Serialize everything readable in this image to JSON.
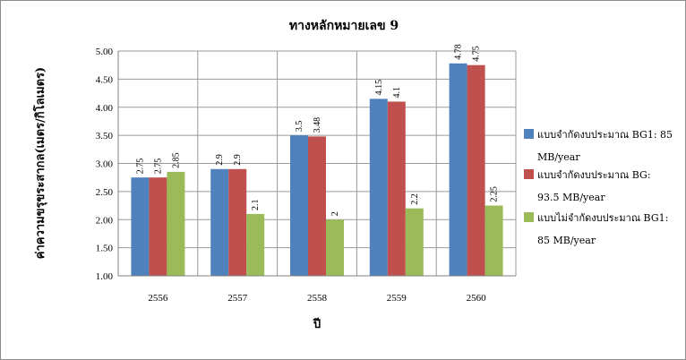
{
  "chart_data": {
    "type": "bar",
    "title": "ทางหลักหมายเลข 9",
    "xlabel": "ปี",
    "ylabel": "ค่าความขรุขระสากล(เมตร/กิโลเมตร)",
    "categories": [
      "2556",
      "2557",
      "2558",
      "2559",
      "2560"
    ],
    "ylim": [
      1.0,
      5.0
    ],
    "yticks": [
      "1.00",
      "1.50",
      "2.00",
      "2.50",
      "3.00",
      "3.50",
      "4.00",
      "4.50",
      "5.00"
    ],
    "grid": "horizontal and vertical",
    "legend_position": "right",
    "series": [
      {
        "name": "แบบจำกัดงบประมาณ BG1: 85 MB/year",
        "legend_lines": [
          "แบบจำกัดงบประมาณ  BG1: 85",
          "MB/year"
        ],
        "color": "#4f81bd",
        "values": [
          2.75,
          2.9,
          3.5,
          4.15,
          4.78
        ],
        "labels": [
          "2.75",
          "2.9",
          "3.5",
          "4.15",
          "4.78"
        ]
      },
      {
        "name": "แบบจำกัดงบประมาณ BG: 93.5 MB/year",
        "legend_lines": [
          "แบบจำกัดงบประมาณ  BG:",
          "93.5 MB/year"
        ],
        "color": "#c0504d",
        "values": [
          2.75,
          2.9,
          3.48,
          4.1,
          4.75
        ],
        "labels": [
          "2.75",
          "2.9",
          "3.48",
          "4.1",
          "4.75"
        ]
      },
      {
        "name": "แบบไม่จำกัดงบประมาณ BG1: 85 MB/year",
        "legend_lines": [
          "แบบไม่จำกัดงบประมาณ  BG1:",
          "85 MB/year"
        ],
        "color": "#9bbb59",
        "values": [
          2.85,
          2.1,
          2.0,
          2.2,
          2.25
        ],
        "labels": [
          "2.85",
          "2.1",
          "2",
          "2.2",
          "2.25"
        ]
      }
    ]
  }
}
